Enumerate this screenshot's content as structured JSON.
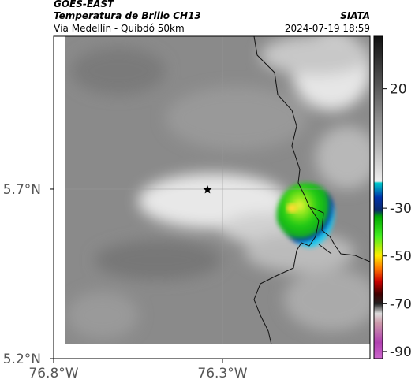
{
  "chart_data": {
    "type": "map",
    "title": "GOES-EAST",
    "subtitle": "Temperatura de Brillo CH13",
    "caption": "Vía Medellín - Quibdó 50km",
    "source": "SIATA",
    "date": "2024-07-19 18:59",
    "xlim": [
      -76.8,
      -75.863
    ],
    "ylim": [
      5.2,
      6.151
    ],
    "xticks": [
      {
        "value": -76.8,
        "label": "76.8°W"
      },
      {
        "value": -76.3,
        "label": "76.3°W"
      }
    ],
    "yticks": [
      {
        "value": 5.7,
        "label": "5.7°N"
      },
      {
        "value": 5.2,
        "label": "5.2°N"
      }
    ],
    "colorbar": {
      "lim": [
        42,
        -93
      ],
      "ticks": [
        20,
        -30,
        -50,
        -70,
        -90
      ]
    }
  }
}
